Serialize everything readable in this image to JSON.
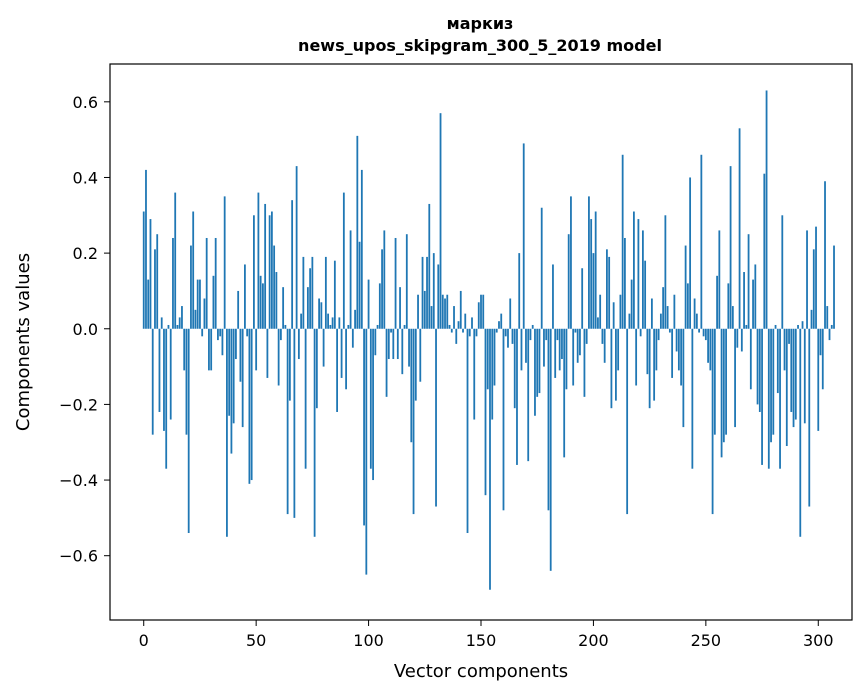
{
  "chart_data": {
    "type": "bar",
    "title_line1": "маркиз",
    "title_line2": "news_upos_skipgram_300_5_2019 model",
    "xlabel": "Vector components",
    "ylabel": "Components values",
    "xlim": [
      -15,
      315
    ],
    "ylim": [
      -0.77,
      0.7
    ],
    "xticks": [
      0,
      50,
      100,
      150,
      200,
      250,
      300
    ],
    "yticks": [
      -0.6,
      -0.4,
      -0.2,
      0.0,
      0.2,
      0.4,
      0.6
    ],
    "ytick_labels": [
      "−0.6",
      "−0.4",
      "−0.2",
      "0.0",
      "0.2",
      "0.4",
      "0.6"
    ],
    "bar_color": "#1f77b4",
    "values": [
      0.31,
      0.42,
      0.13,
      0.29,
      -0.28,
      0.21,
      0.25,
      -0.22,
      0.03,
      -0.27,
      -0.37,
      0.01,
      -0.24,
      0.24,
      0.36,
      0.01,
      0.03,
      0.06,
      -0.11,
      -0.28,
      -0.54,
      0.22,
      0.31,
      0.05,
      0.13,
      0.13,
      -0.02,
      0.08,
      0.24,
      -0.11,
      -0.11,
      0.14,
      0.24,
      -0.03,
      -0.02,
      -0.07,
      0.35,
      -0.55,
      -0.23,
      -0.33,
      -0.25,
      -0.08,
      0.1,
      -0.14,
      -0.26,
      0.17,
      -0.02,
      -0.41,
      -0.4,
      0.3,
      -0.11,
      0.36,
      0.14,
      0.12,
      0.33,
      -0.13,
      0.3,
      0.31,
      0.22,
      0.15,
      -0.15,
      -0.03,
      0.11,
      0.01,
      -0.49,
      -0.19,
      0.34,
      -0.5,
      0.43,
      -0.08,
      0.04,
      0.19,
      -0.37,
      0.11,
      0.16,
      0.19,
      -0.55,
      -0.21,
      0.08,
      0.07,
      -0.1,
      0.19,
      0.04,
      0.01,
      0.03,
      0.18,
      -0.22,
      0.03,
      -0.13,
      0.36,
      -0.16,
      0.01,
      0.26,
      -0.05,
      0.05,
      0.51,
      0.23,
      0.42,
      -0.52,
      -0.65,
      0.13,
      -0.37,
      -0.4,
      -0.07,
      0.01,
      0.12,
      0.21,
      0.26,
      -0.18,
      -0.08,
      -0.01,
      -0.08,
      0.24,
      -0.08,
      0.11,
      -0.12,
      0.01,
      0.25,
      -0.1,
      -0.3,
      -0.49,
      -0.19,
      0.09,
      -0.14,
      0.19,
      0.1,
      0.19,
      0.33,
      0.06,
      0.2,
      -0.47,
      0.17,
      0.57,
      0.09,
      0.08,
      0.09,
      0.01,
      -0.01,
      0.06,
      -0.04,
      0.02,
      0.1,
      -0.01,
      0.04,
      -0.54,
      -0.02,
      0.03,
      -0.24,
      -0.02,
      0.07,
      0.09,
      0.09,
      -0.44,
      -0.16,
      -0.69,
      -0.24,
      -0.15,
      -0.01,
      0.02,
      0.04,
      -0.48,
      -0.02,
      -0.05,
      0.08,
      -0.04,
      -0.21,
      -0.36,
      0.2,
      -0.11,
      0.49,
      -0.09,
      -0.35,
      -0.03,
      0.01,
      -0.23,
      -0.18,
      -0.17,
      0.32,
      -0.1,
      -0.03,
      -0.48,
      -0.64,
      0.17,
      -0.13,
      -0.03,
      -0.11,
      -0.08,
      -0.34,
      -0.16,
      0.25,
      0.35,
      -0.15,
      -0.01,
      -0.09,
      -0.07,
      0.16,
      -0.18,
      -0.04,
      0.35,
      0.29,
      0.2,
      0.31,
      0.03,
      0.09,
      -0.04,
      -0.09,
      0.21,
      0.19,
      -0.21,
      0.07,
      -0.19,
      -0.11,
      0.09,
      0.46,
      0.24,
      -0.49,
      0.04,
      0.13,
      0.31,
      -0.15,
      0.29,
      -0.02,
      0.26,
      0.18,
      -0.12,
      -0.21,
      0.08,
      -0.19,
      -0.11,
      -0.03,
      0.04,
      0.11,
      0.3,
      0.06,
      -0.01,
      -0.13,
      0.09,
      -0.06,
      -0.11,
      -0.15,
      -0.26,
      0.22,
      0.12,
      0.4,
      -0.37,
      0.08,
      0.04,
      -0.01,
      0.46,
      -0.02,
      -0.03,
      -0.09,
      -0.11,
      -0.49,
      -0.28,
      0.14,
      0.26,
      -0.34,
      -0.3,
      -0.28,
      0.12,
      0.43,
      0.06,
      -0.26,
      -0.05,
      0.53,
      -0.06,
      0.15,
      0.01,
      0.25,
      -0.16,
      0.13,
      0.17,
      -0.2,
      -0.22,
      -0.36,
      0.41,
      0.63,
      -0.37,
      -0.3,
      -0.28,
      0.01,
      -0.17,
      -0.37,
      0.3,
      -0.11,
      -0.31,
      -0.04,
      -0.22,
      -0.26,
      -0.24,
      0.01,
      -0.55,
      0.02,
      -0.25,
      0.26,
      -0.47,
      0.05,
      0.21,
      0.27,
      -0.27,
      -0.07,
      -0.16,
      0.39,
      0.06,
      -0.03,
      0.01,
      0.22
    ]
  }
}
